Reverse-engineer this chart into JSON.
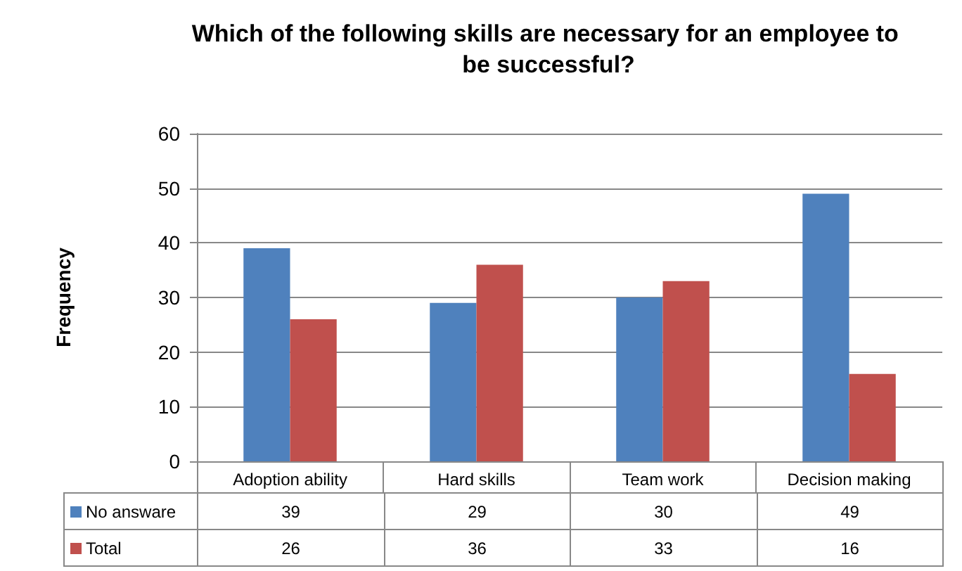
{
  "chart_data": {
    "type": "bar",
    "title": "Which of the following skills are necessary for an employee to be successful?",
    "ylabel": "Frequency",
    "categories": [
      "Adoption ability",
      "Hard skills",
      "Team work",
      "Decision making"
    ],
    "series": [
      {
        "name": "No answare",
        "color": "#4f81bd",
        "values": [
          39,
          29,
          30,
          49
        ]
      },
      {
        "name": "Total",
        "color": "#c0504d",
        "values": [
          26,
          36,
          33,
          16
        ]
      }
    ],
    "ylim": [
      0,
      60
    ],
    "yticks": [
      0,
      10,
      20,
      30,
      40,
      50,
      60
    ],
    "grid": "y",
    "legend": "bottom",
    "data_labels": true
  }
}
